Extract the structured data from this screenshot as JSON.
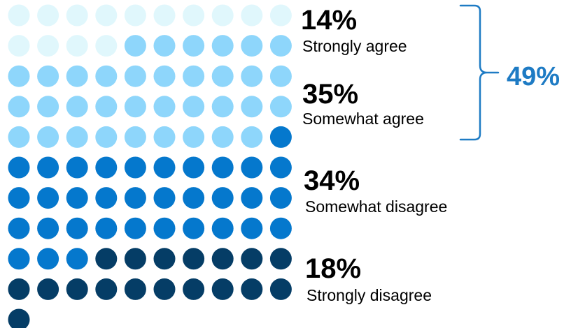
{
  "chart_data": {
    "type": "waffle",
    "categories": [
      "Strongly agree",
      "Somewhat agree",
      "Somewhat disagree",
      "Strongly disagree"
    ],
    "values": [
      14,
      35,
      34,
      18
    ],
    "value_labels": [
      "14%",
      "35%",
      "34%",
      "18%"
    ],
    "colors": [
      "#e0f7fc",
      "#8ed6fb",
      "#0578cd",
      "#053d66"
    ],
    "grid_columns": 10,
    "bracket": {
      "covers": [
        "Strongly agree",
        "Somewhat agree"
      ],
      "value": 49,
      "label": "49%",
      "color": "#1e7bc4"
    },
    "title": "",
    "xlabel": "",
    "ylabel": ""
  }
}
